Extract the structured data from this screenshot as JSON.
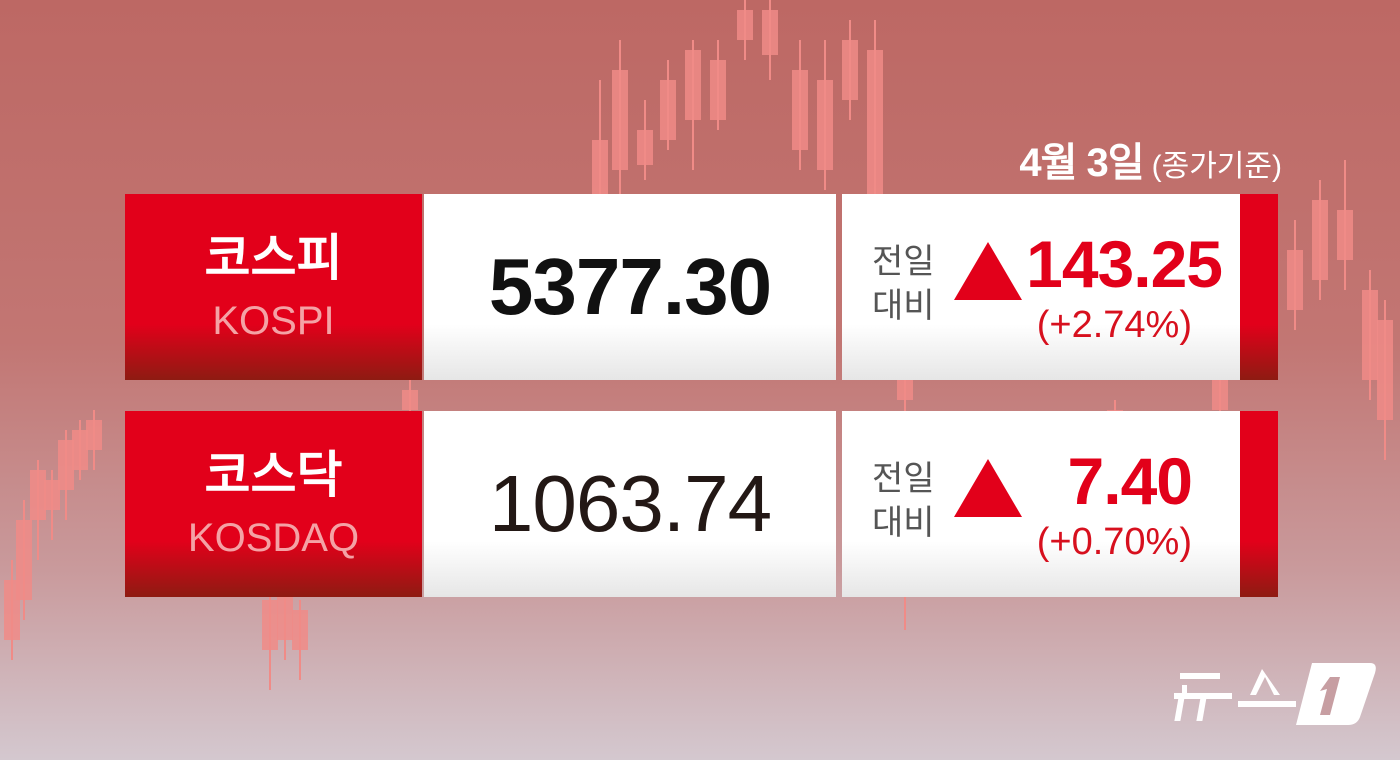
{
  "date": {
    "day": "4월 3일",
    "note": "(종가기준)"
  },
  "indices": [
    {
      "name_ko": "코스피",
      "name_en": "KOSPI",
      "value": "5377.30",
      "prev_label_1": "전일",
      "prev_label_2": "대비",
      "direction": "up",
      "change": "143.25",
      "change_pct": "(+2.74%)"
    },
    {
      "name_ko": "코스닥",
      "name_en": "KOSDAQ",
      "value": "1063.74",
      "prev_label_1": "전일",
      "prev_label_2": "대비",
      "direction": "up",
      "change": "7.40",
      "change_pct": "(+0.70%)"
    }
  ],
  "logo": {
    "text": "뉴스1"
  },
  "colors": {
    "accent": "#e2001a",
    "up": "#e2001a"
  }
}
